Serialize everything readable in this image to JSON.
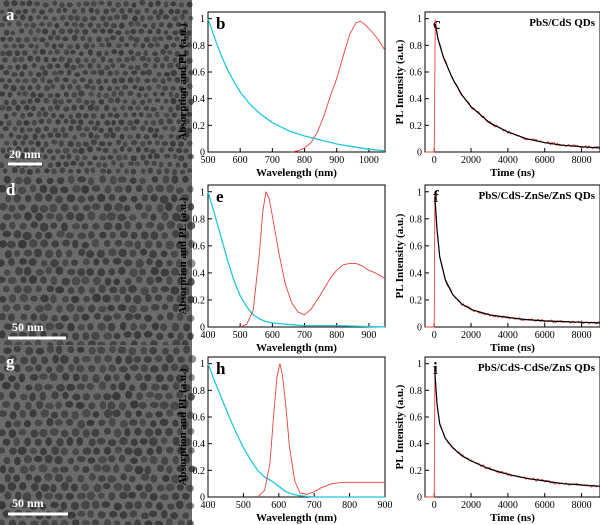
{
  "colors": {
    "absorption": "#1ec8e0",
    "pl": "#e8413c",
    "decay_data": "#e8413c",
    "decay_fit": "#000000",
    "tem_background": "#8a8a8a",
    "tem_particle": "#3d3d3d",
    "axis": "#000000"
  },
  "tem_panels": [
    {
      "letter": "a",
      "scale_label": "20 nm"
    },
    {
      "letter": "d",
      "scale_label": "50 nm"
    },
    {
      "letter": "g",
      "scale_label": "50 nm"
    }
  ],
  "chart_data": [
    {
      "panel": "b",
      "type": "line",
      "xlabel": "Wavelength (nm)",
      "ylabel": "Absorption and PL (a.u.)",
      "xlim": [
        500,
        1050
      ],
      "ylim": [
        0,
        1.05
      ],
      "xticks": [
        500,
        600,
        700,
        800,
        900,
        1000
      ],
      "yticks": [
        0.0,
        0.2,
        0.4,
        0.6,
        0.8,
        1.0
      ],
      "series": [
        {
          "role": "absorption",
          "x": [
            500,
            520,
            540,
            560,
            580,
            600,
            630,
            660,
            700,
            750,
            800,
            850,
            900,
            950,
            1000,
            1050
          ],
          "y": [
            1.0,
            0.86,
            0.73,
            0.62,
            0.53,
            0.45,
            0.36,
            0.29,
            0.22,
            0.16,
            0.12,
            0.09,
            0.06,
            0.04,
            0.02,
            0.01
          ]
        },
        {
          "role": "pl",
          "x": [
            760,
            780,
            800,
            820,
            840,
            860,
            880,
            900,
            920,
            940,
            960,
            975,
            990,
            1010,
            1030,
            1050
          ],
          "y": [
            0.0,
            0.01,
            0.03,
            0.07,
            0.15,
            0.27,
            0.42,
            0.55,
            0.72,
            0.88,
            0.97,
            0.98,
            0.95,
            0.9,
            0.84,
            0.76
          ]
        }
      ]
    },
    {
      "panel": "c",
      "type": "line",
      "sample_label": "PbS/CdS QDs",
      "xlabel": "Time (ns)",
      "ylabel": "PL Intensity (a.u.)",
      "xlim": [
        -500,
        9000
      ],
      "ylim": [
        0,
        1.05
      ],
      "xticks": [
        0,
        2000,
        4000,
        6000,
        8000
      ],
      "yticks": [
        0.0,
        0.2,
        0.4,
        0.6,
        0.8,
        1.0
      ],
      "series": [
        {
          "role": "decay_data",
          "x": [
            -500,
            0,
            60,
            200,
            500,
            1000,
            1500,
            2000,
            3000,
            4000,
            5000,
            6000,
            7000,
            8000,
            9000
          ],
          "y": [
            0.0,
            0.0,
            0.98,
            0.86,
            0.72,
            0.55,
            0.43,
            0.34,
            0.22,
            0.15,
            0.1,
            0.07,
            0.05,
            0.04,
            0.03
          ]
        },
        {
          "role": "decay_fit",
          "x": [
            60,
            200,
            500,
            1000,
            1500,
            2000,
            3000,
            4000,
            5000,
            6000,
            7000,
            8000,
            9000
          ],
          "y": [
            0.96,
            0.85,
            0.71,
            0.55,
            0.43,
            0.34,
            0.22,
            0.15,
            0.1,
            0.07,
            0.05,
            0.04,
            0.03
          ]
        }
      ]
    },
    {
      "panel": "e",
      "type": "line",
      "xlabel": "Wavelength (nm)",
      "ylabel": "Absorption and PL (a.u.)",
      "xlim": [
        400,
        950
      ],
      "ylim": [
        0,
        1.05
      ],
      "xticks": [
        400,
        500,
        600,
        700,
        800,
        900
      ],
      "yticks": [
        0.0,
        0.2,
        0.4,
        0.6,
        0.8,
        1.0
      ],
      "series": [
        {
          "role": "absorption",
          "x": [
            400,
            420,
            440,
            460,
            480,
            500,
            520,
            540,
            560,
            580,
            600,
            640,
            700,
            800,
            950
          ],
          "y": [
            1.0,
            0.84,
            0.67,
            0.5,
            0.35,
            0.23,
            0.15,
            0.09,
            0.06,
            0.04,
            0.03,
            0.02,
            0.01,
            0.01,
            0.0
          ]
        },
        {
          "role": "pl",
          "x": [
            500,
            520,
            540,
            560,
            570,
            580,
            590,
            600,
            620,
            640,
            660,
            680,
            700,
            720,
            750,
            780,
            800,
            820,
            840,
            860,
            880,
            900,
            920,
            950
          ],
          "y": [
            0.0,
            0.02,
            0.12,
            0.55,
            0.85,
            1.0,
            0.95,
            0.82,
            0.55,
            0.32,
            0.18,
            0.11,
            0.09,
            0.13,
            0.24,
            0.36,
            0.42,
            0.46,
            0.47,
            0.47,
            0.45,
            0.42,
            0.4,
            0.36
          ]
        }
      ]
    },
    {
      "panel": "f",
      "type": "line",
      "sample_label": "PbS/CdS-ZnSe/ZnS QDs",
      "xlabel": "Time (ns)",
      "ylabel": "PL Intensity (a.u.)",
      "xlim": [
        -500,
        9000
      ],
      "ylim": [
        0,
        1.05
      ],
      "xticks": [
        0,
        2000,
        4000,
        6000,
        8000
      ],
      "yticks": [
        0.0,
        0.2,
        0.4,
        0.6,
        0.8,
        1.0
      ],
      "series": [
        {
          "role": "decay_data",
          "x": [
            -500,
            0,
            40,
            150,
            300,
            600,
            1000,
            1500,
            2000,
            3000,
            4000,
            5000,
            6000,
            7000,
            8000,
            9000
          ],
          "y": [
            0.0,
            0.0,
            0.98,
            0.72,
            0.52,
            0.35,
            0.24,
            0.17,
            0.13,
            0.09,
            0.07,
            0.055,
            0.045,
            0.04,
            0.035,
            0.03
          ]
        },
        {
          "role": "decay_fit",
          "x": [
            40,
            150,
            300,
            600,
            1000,
            1500,
            2000,
            3000,
            4000,
            5000,
            6000,
            7000,
            8000,
            9000
          ],
          "y": [
            0.96,
            0.72,
            0.52,
            0.35,
            0.24,
            0.17,
            0.13,
            0.09,
            0.07,
            0.055,
            0.045,
            0.04,
            0.035,
            0.03
          ]
        }
      ]
    },
    {
      "panel": "h",
      "type": "line",
      "xlabel": "Wavelength (nm)",
      "ylabel": "Absorption and PL (a.u.)",
      "xlim": [
        400,
        900
      ],
      "ylim": [
        0,
        1.05
      ],
      "xticks": [
        400,
        500,
        600,
        700,
        800,
        900
      ],
      "yticks": [
        0.0,
        0.2,
        0.4,
        0.6,
        0.8,
        1.0
      ],
      "series": [
        {
          "role": "absorption",
          "x": [
            400,
            420,
            440,
            460,
            480,
            500,
            520,
            540,
            560,
            580,
            600,
            620,
            640,
            660,
            700,
            800,
            900
          ],
          "y": [
            1.0,
            0.86,
            0.73,
            0.6,
            0.48,
            0.37,
            0.28,
            0.2,
            0.15,
            0.12,
            0.08,
            0.04,
            0.02,
            0.01,
            0.0,
            0.0,
            0.0
          ]
        },
        {
          "role": "pl",
          "x": [
            540,
            560,
            575,
            585,
            595,
            603,
            610,
            620,
            630,
            645,
            660,
            680,
            700,
            720,
            750,
            780,
            800,
            850,
            900
          ],
          "y": [
            0.0,
            0.05,
            0.25,
            0.6,
            0.9,
            1.0,
            0.92,
            0.68,
            0.38,
            0.12,
            0.03,
            0.02,
            0.04,
            0.07,
            0.1,
            0.11,
            0.11,
            0.11,
            0.11
          ]
        }
      ]
    },
    {
      "panel": "i",
      "type": "line",
      "sample_label": "PbS/CdS-CdSe/ZnS QDs",
      "xlabel": "Time (ns)",
      "ylabel": "PL Intensity (a.u.)",
      "xlim": [
        -500,
        9000
      ],
      "ylim": [
        0,
        1.05
      ],
      "xticks": [
        0,
        2000,
        4000,
        6000,
        8000
      ],
      "yticks": [
        0.0,
        0.2,
        0.4,
        0.6,
        0.8,
        1.0
      ],
      "series": [
        {
          "role": "decay_data",
          "x": [
            -500,
            0,
            40,
            150,
            300,
            600,
            1000,
            1500,
            2000,
            3000,
            4000,
            5000,
            6000,
            7000,
            8000,
            9000
          ],
          "y": [
            0.0,
            0.0,
            0.95,
            0.7,
            0.55,
            0.44,
            0.37,
            0.31,
            0.27,
            0.21,
            0.17,
            0.14,
            0.12,
            0.1,
            0.09,
            0.08
          ]
        },
        {
          "role": "decay_fit",
          "x": [
            40,
            150,
            300,
            600,
            1000,
            1500,
            2000,
            3000,
            4000,
            5000,
            6000,
            7000,
            8000,
            9000
          ],
          "y": [
            0.93,
            0.7,
            0.55,
            0.44,
            0.37,
            0.31,
            0.27,
            0.21,
            0.17,
            0.14,
            0.12,
            0.1,
            0.09,
            0.08
          ]
        }
      ]
    }
  ]
}
